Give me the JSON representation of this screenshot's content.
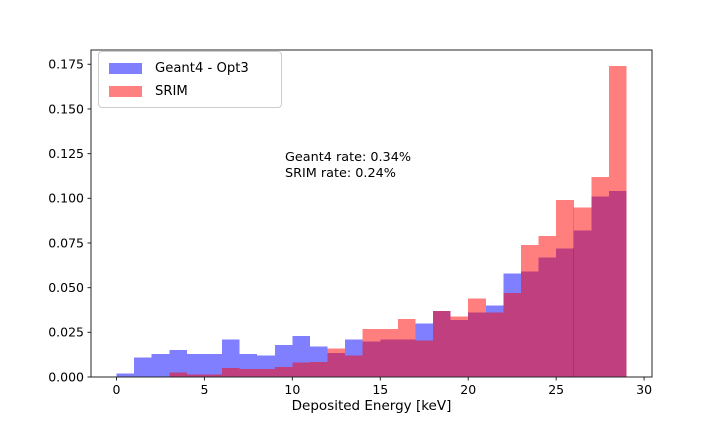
{
  "chart_data": {
    "type": "histogram-overlay",
    "title": "",
    "xlabel": "Deposited Energy [keV]",
    "ylabel": "",
    "bin_width_keV": 1,
    "bin_start_keV": 0,
    "bin_end_keV": 29,
    "series": [
      {
        "name": "Geant4 - Opt3",
        "color": "#0000ff",
        "swatch_color": "#8080ff",
        "alpha": 0.5,
        "values": [
          0.002,
          0.011,
          0.013,
          0.015,
          0.013,
          0.013,
          0.021,
          0.013,
          0.012,
          0.018,
          0.023,
          0.017,
          0.0135,
          0.021,
          0.02,
          0.021,
          0.021,
          0.03,
          0.037,
          0.032,
          0.036,
          0.04,
          0.058,
          0.059,
          0.067,
          0.072,
          0.082,
          0.101,
          0.104
        ]
      },
      {
        "name": "SRIM",
        "color": "#ff0000",
        "swatch_color": "#ff8080",
        "alpha": 0.5,
        "values": [
          0.0,
          0.0,
          0.0,
          0.0026,
          0.0015,
          0.0015,
          0.005,
          0.0045,
          0.0045,
          0.0055,
          0.008,
          0.0085,
          0.016,
          0.012,
          0.027,
          0.027,
          0.0325,
          0.0205,
          0.037,
          0.034,
          0.044,
          0.036,
          0.047,
          0.074,
          0.079,
          0.099,
          0.095,
          0.112,
          0.174
        ]
      }
    ],
    "annotations": [
      "Geant4 rate: 0.34%",
      "SRIM rate: 0.24%"
    ],
    "xtick_values": [
      0,
      5,
      10,
      15,
      20,
      25,
      30
    ],
    "xtick_labels": [
      "0",
      "5",
      "10",
      "15",
      "20",
      "25",
      "30"
    ],
    "ytick_values": [
      0.0,
      0.025,
      0.05,
      0.075,
      0.1,
      0.125,
      0.15,
      0.175
    ],
    "ytick_labels": [
      "0.000",
      "0.025",
      "0.050",
      "0.075",
      "0.100",
      "0.125",
      "0.150",
      "0.175"
    ],
    "xlim": [
      -1.45,
      30.45
    ],
    "ylim": [
      0,
      0.183
    ],
    "legend_position": "upper left",
    "grid": false,
    "spine_color": "#262626",
    "text_color": "#000000"
  }
}
